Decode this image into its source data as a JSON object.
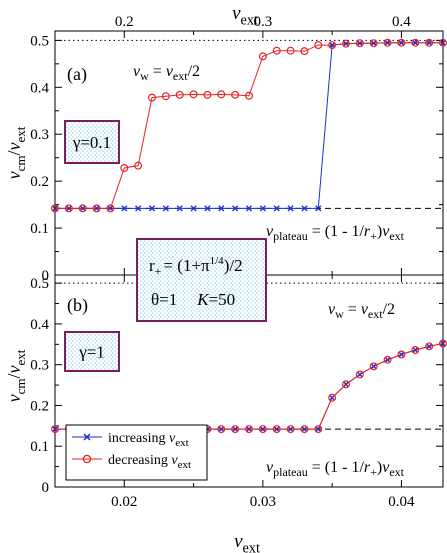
{
  "figure": {
    "top_axis_label": "v_ext",
    "bottom_axis_label": "v_ext",
    "shared_box": {
      "line1": "r+ = (1+π^1/4)/2",
      "line2_theta": "θ=1",
      "line2_K": "K=50"
    }
  },
  "chart_data": [
    {
      "panel": "(a)",
      "type": "line",
      "x_axis": "top",
      "xlim": [
        0.15,
        0.43
      ],
      "x_ticks": [
        0.2,
        0.3,
        0.4
      ],
      "ylim": [
        0,
        0.52
      ],
      "y_ticks": [
        0,
        0.1,
        0.2,
        0.3,
        0.4,
        0.5
      ],
      "xlabel": "v_ext",
      "ylabel": "v_cm/v_ext",
      "gamma_label": "γ=0.1",
      "annotations": {
        "vw": "v_w = v_ext/2",
        "plateau": "v_plateau = (1 - 1/r+)v_ext"
      },
      "reference_lines": [
        {
          "style": "dotted",
          "y": 0.5
        },
        {
          "style": "dashed",
          "y": 0.142
        }
      ],
      "series": [
        {
          "name": "increasing v_ext",
          "color": "#1f2fd6",
          "marker": "x",
          "x": [
            0.15,
            0.16,
            0.17,
            0.18,
            0.19,
            0.2,
            0.21,
            0.22,
            0.23,
            0.24,
            0.25,
            0.26,
            0.27,
            0.28,
            0.29,
            0.3,
            0.31,
            0.32,
            0.33,
            0.34,
            0.35,
            0.36,
            0.37,
            0.38,
            0.39,
            0.4,
            0.41,
            0.42,
            0.43
          ],
          "y": [
            0.142,
            0.142,
            0.142,
            0.142,
            0.142,
            0.142,
            0.142,
            0.142,
            0.142,
            0.142,
            0.142,
            0.142,
            0.142,
            0.142,
            0.142,
            0.142,
            0.142,
            0.142,
            0.142,
            0.142,
            0.49,
            0.493,
            0.494,
            0.494,
            0.495,
            0.495,
            0.495,
            0.495,
            0.495
          ]
        },
        {
          "name": "decreasing v_ext",
          "color": "#e8231f",
          "marker": "o",
          "x": [
            0.15,
            0.16,
            0.17,
            0.18,
            0.19,
            0.2,
            0.21,
            0.22,
            0.23,
            0.24,
            0.25,
            0.26,
            0.27,
            0.28,
            0.29,
            0.3,
            0.31,
            0.32,
            0.33,
            0.34,
            0.35,
            0.36,
            0.37,
            0.38,
            0.39,
            0.4,
            0.41,
            0.42,
            0.43
          ],
          "y": [
            0.142,
            0.142,
            0.142,
            0.142,
            0.142,
            0.228,
            0.233,
            0.378,
            0.381,
            0.384,
            0.385,
            0.384,
            0.385,
            0.384,
            0.382,
            0.466,
            0.478,
            0.478,
            0.477,
            0.49,
            0.49,
            0.493,
            0.494,
            0.494,
            0.495,
            0.495,
            0.495,
            0.495,
            0.495
          ]
        }
      ]
    },
    {
      "panel": "(b)",
      "type": "line",
      "x_axis": "bottom",
      "xlim": [
        0.015,
        0.043
      ],
      "x_ticks": [
        0.02,
        0.03,
        0.04
      ],
      "ylim": [
        0,
        0.52
      ],
      "y_ticks": [
        0,
        0.1,
        0.2,
        0.3,
        0.4,
        0.5
      ],
      "xlabel": "v_ext",
      "ylabel": "v_cm/v_ext",
      "gamma_label": "γ=1",
      "annotations": {
        "vw": "v_w = v_ext/2",
        "plateau": "v_plateau = (1 - 1/r+)v_ext"
      },
      "reference_lines": [
        {
          "style": "dotted",
          "y": 0.5
        },
        {
          "style": "dashed",
          "y": 0.142
        }
      ],
      "legend": {
        "placement": "bottom-left"
      },
      "series": [
        {
          "name": "increasing v_ext",
          "color": "#1f2fd6",
          "marker": "x",
          "x": [
            0.015,
            0.016,
            0.017,
            0.018,
            0.019,
            0.02,
            0.021,
            0.022,
            0.023,
            0.024,
            0.025,
            0.026,
            0.027,
            0.028,
            0.029,
            0.03,
            0.031,
            0.032,
            0.033,
            0.034,
            0.035,
            0.036,
            0.037,
            0.038,
            0.039,
            0.04,
            0.041,
            0.042,
            0.043
          ],
          "y": [
            0.142,
            0.142,
            0.142,
            0.142,
            0.142,
            0.142,
            0.142,
            0.142,
            0.142,
            0.142,
            0.142,
            0.142,
            0.142,
            0.142,
            0.142,
            0.142,
            0.142,
            0.142,
            0.142,
            0.142,
            0.219,
            0.252,
            0.276,
            0.296,
            0.312,
            0.325,
            0.336,
            0.345,
            0.352
          ]
        },
        {
          "name": "decreasing v_ext",
          "color": "#e8231f",
          "marker": "o",
          "x": [
            0.015,
            0.016,
            0.017,
            0.018,
            0.019,
            0.02,
            0.021,
            0.022,
            0.023,
            0.024,
            0.025,
            0.026,
            0.027,
            0.028,
            0.029,
            0.03,
            0.031,
            0.032,
            0.033,
            0.034,
            0.035,
            0.036,
            0.037,
            0.038,
            0.039,
            0.04,
            0.041,
            0.042,
            0.043
          ],
          "y": [
            0.142,
            0.142,
            0.142,
            0.142,
            0.142,
            0.142,
            0.142,
            0.142,
            0.142,
            0.142,
            0.142,
            0.142,
            0.142,
            0.142,
            0.142,
            0.142,
            0.142,
            0.142,
            0.142,
            0.142,
            0.219,
            0.252,
            0.276,
            0.296,
            0.312,
            0.325,
            0.336,
            0.345,
            0.352
          ]
        }
      ]
    }
  ]
}
